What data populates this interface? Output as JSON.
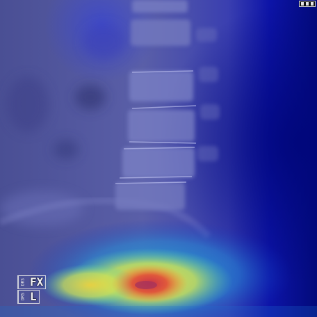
{
  "markers": {
    "fx": {
      "side_code": "DRS",
      "label": "FX"
    },
    "l": {
      "side_code": "DRS",
      "label": "L"
    }
  },
  "colors": {
    "xray_tint": "#5a5fa8",
    "heat_low": "#00007a",
    "heat_mid": "#1fb5d8",
    "heat_warm": "#f3d43a",
    "heat_hot": "#d8323c"
  },
  "icons": {
    "top_right": "window-icon"
  }
}
